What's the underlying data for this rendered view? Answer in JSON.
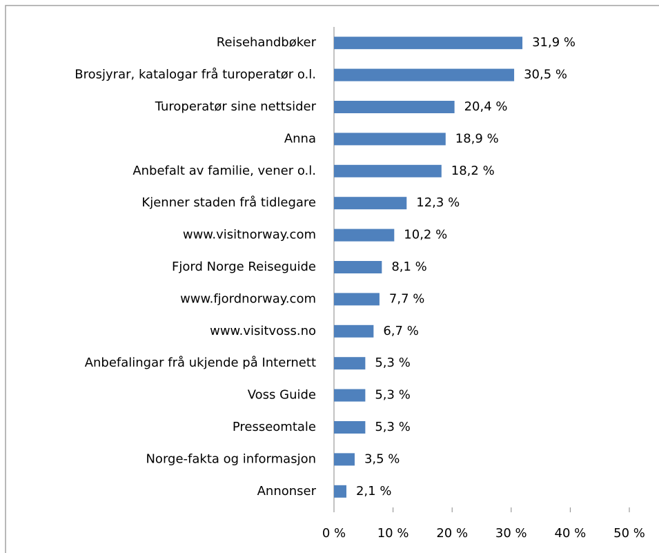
{
  "chart_data": {
    "type": "barh",
    "categories": [
      "Reisehandbøker",
      "Brosjyrar, katalogar frå turoperatør o.l.",
      "Turoperatør sine nettsider",
      "Anna",
      "Anbefalt av familie, vener o.l.",
      "Kjenner staden frå tidlegare",
      "www.visitnorway.com",
      "Fjord Norge Reiseguide",
      "www.fjordnorway.com",
      "www.visitvoss.no",
      "Anbefalingar frå ukjende på Internett",
      "Voss Guide",
      "Presseomtale",
      "Norge-fakta og informasjon",
      "Annonser"
    ],
    "values": [
      31.9,
      30.5,
      20.4,
      18.9,
      18.2,
      12.3,
      10.2,
      8.1,
      7.7,
      6.7,
      5.3,
      5.3,
      5.3,
      3.5,
      2.1
    ],
    "value_labels": [
      "31,9 %",
      "30,5 %",
      "20,4 %",
      "18,9 %",
      "18,2 %",
      "12,3 %",
      "10,2 %",
      "8,1 %",
      "7,7 %",
      "6,7 %",
      "5,3 %",
      "5,3 %",
      "5,3 %",
      "3,5 %",
      "2,1 %"
    ],
    "color": "#4f81bd",
    "xlim": [
      0,
      50
    ],
    "xticks": [
      {
        "value": 0,
        "label": "0 %"
      },
      {
        "value": 10,
        "label": "10 %"
      },
      {
        "value": 20,
        "label": "20 %"
      },
      {
        "value": 30,
        "label": "30 %"
      },
      {
        "value": 40,
        "label": "40 %"
      },
      {
        "value": 50,
        "label": "50 %"
      }
    ],
    "grid": false
  }
}
